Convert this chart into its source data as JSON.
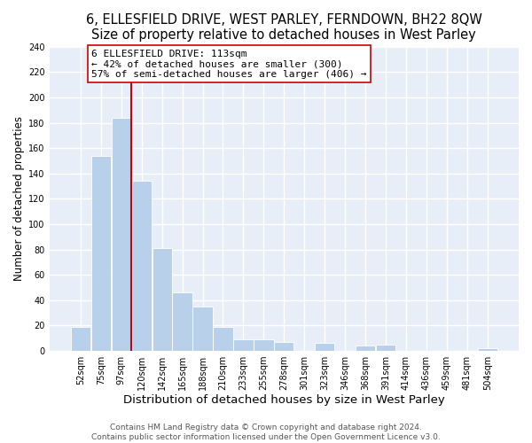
{
  "title": "6, ELLESFIELD DRIVE, WEST PARLEY, FERNDOWN, BH22 8QW",
  "subtitle": "Size of property relative to detached houses in West Parley",
  "xlabel": "Distribution of detached houses by size in West Parley",
  "ylabel": "Number of detached properties",
  "bar_color": "#b8d0ea",
  "categories": [
    "52sqm",
    "75sqm",
    "97sqm",
    "120sqm",
    "142sqm",
    "165sqm",
    "188sqm",
    "210sqm",
    "233sqm",
    "255sqm",
    "278sqm",
    "301sqm",
    "323sqm",
    "346sqm",
    "368sqm",
    "391sqm",
    "414sqm",
    "436sqm",
    "459sqm",
    "481sqm",
    "504sqm"
  ],
  "values": [
    19,
    154,
    184,
    134,
    81,
    46,
    35,
    19,
    9,
    9,
    7,
    0,
    6,
    0,
    4,
    5,
    0,
    0,
    0,
    0,
    2
  ],
  "vline_color": "#cc0000",
  "annotation_title": "6 ELLESFIELD DRIVE: 113sqm",
  "annotation_line1": "← 42% of detached houses are smaller (300)",
  "annotation_line2": "57% of semi-detached houses are larger (406) →",
  "annotation_box_edge": "#cc0000",
  "ylim": [
    0,
    240
  ],
  "yticks": [
    0,
    20,
    40,
    60,
    80,
    100,
    120,
    140,
    160,
    180,
    200,
    220,
    240
  ],
  "footer1": "Contains HM Land Registry data © Crown copyright and database right 2024.",
  "footer2": "Contains public sector information licensed under the Open Government Licence v3.0.",
  "background_color": "#ffffff",
  "plot_bg_color": "#e8eef7",
  "grid_color": "#ffffff",
  "title_fontsize": 10.5,
  "xlabel_fontsize": 9.5,
  "ylabel_fontsize": 8.5,
  "tick_fontsize": 7,
  "footer_fontsize": 6.5,
  "annotation_fontsize": 8
}
